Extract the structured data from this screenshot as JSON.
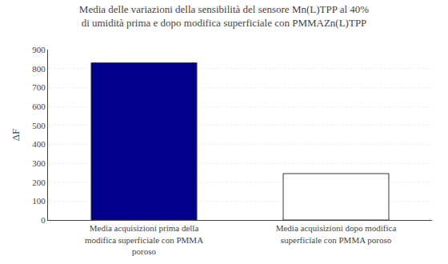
{
  "chart_data": {
    "type": "bar",
    "title": "Media delle variazioni della sensibilità del sensore Mn(L)TPP al 40%\ndi umidità prima e dopo modifica superficiale con PMMAZn(L)TPP",
    "y_label": "ΔF",
    "categories": [
      "Media acquisizioni prima della\nmodifica superficiale con PMMA\nporoso",
      "Media acquisizioni dopo modifica\nsuperficiale con PMMA poroso"
    ],
    "values": [
      830,
      245
    ],
    "colors": [
      "#00008B",
      "#ffffff"
    ],
    "ylim": [
      0,
      900
    ],
    "yticks": [
      0,
      100,
      200,
      300,
      400,
      500,
      600,
      700,
      800,
      900
    ],
    "grid": true
  }
}
